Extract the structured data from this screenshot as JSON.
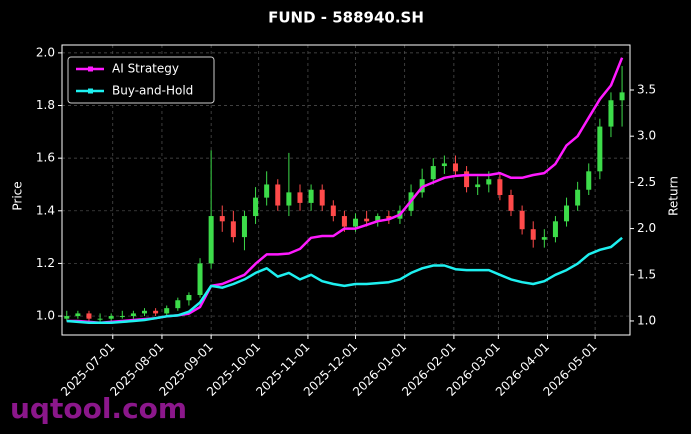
{
  "chart_data": {
    "type": "candlestick",
    "title": "FUND - 588940.SH",
    "y_label": "Price",
    "y2_label": "Return",
    "watermark": "uqtool.com",
    "grid": true,
    "legend_position": "upper-left",
    "up_color": "#3ddc4a",
    "down_color": "#ff4a4a",
    "xlim": [
      "2025-05-30",
      "2026-05-23"
    ],
    "xticks": [
      "2025-07-01",
      "2025-08-01",
      "2025-09-01",
      "2025-10-01",
      "2025-11-01",
      "2025-12-01",
      "2026-01-01",
      "2026-02-01",
      "2026-03-01",
      "2026-04-01",
      "2026-05-01"
    ],
    "ylim": [
      0.928,
      2.03
    ],
    "yticks": [
      {
        "value": 1,
        "label": "1.0"
      },
      1.2,
      1.4,
      1.6,
      1.8,
      {
        "value": 2,
        "label": "2.0"
      }
    ],
    "y2lim": [
      0.848,
      3.987
    ],
    "y2ticks": [
      {
        "value": 1,
        "label": "1.0"
      },
      1.5,
      {
        "value": 2,
        "label": "2.0"
      },
      2.5,
      {
        "value": 3,
        "label": "3.0"
      },
      3.5
    ],
    "x": [
      "2025-06-02",
      "2025-06-09",
      "2025-06-16",
      "2025-06-23",
      "2025-06-30",
      "2025-07-07",
      "2025-07-14",
      "2025-07-21",
      "2025-07-28",
      "2025-08-04",
      "2025-08-11",
      "2025-08-18",
      "2025-08-25",
      "2025-09-01",
      "2025-09-08",
      "2025-09-15",
      "2025-09-22",
      "2025-09-29",
      "2025-10-06",
      "2025-10-13",
      "2025-10-20",
      "2025-10-27",
      "2025-11-03",
      "2025-11-10",
      "2025-11-17",
      "2025-11-24",
      "2025-12-01",
      "2025-12-08",
      "2025-12-15",
      "2025-12-22",
      "2025-12-29",
      "2026-01-05",
      "2026-01-12",
      "2026-01-19",
      "2026-01-26",
      "2026-02-02",
      "2026-02-09",
      "2026-02-16",
      "2026-02-23",
      "2026-03-02",
      "2026-03-09",
      "2026-03-16",
      "2026-03-23",
      "2026-03-30",
      "2026-04-06",
      "2026-04-13",
      "2026-04-20",
      "2026-04-27",
      "2026-05-04",
      "2026-05-11",
      "2026-05-18"
    ],
    "open": [
      0.99,
      1.0,
      1.01,
      0.99,
      0.99,
      1.0,
      1.0,
      1.01,
      1.02,
      1.01,
      1.03,
      1.06,
      1.08,
      1.2,
      1.38,
      1.36,
      1.3,
      1.38,
      1.45,
      1.5,
      1.42,
      1.47,
      1.43,
      1.48,
      1.42,
      1.38,
      1.34,
      1.37,
      1.36,
      1.38,
      1.37,
      1.4,
      1.47,
      1.52,
      1.57,
      1.58,
      1.55,
      1.49,
      1.5,
      1.52,
      1.46,
      1.4,
      1.33,
      1.29,
      1.3,
      1.36,
      1.42,
      1.48,
      1.55,
      1.72,
      1.82
    ],
    "high": [
      1.02,
      1.02,
      1.02,
      1.01,
      1.01,
      1.02,
      1.02,
      1.03,
      1.03,
      1.04,
      1.07,
      1.09,
      1.22,
      1.63,
      1.42,
      1.4,
      1.4,
      1.49,
      1.55,
      1.52,
      1.62,
      1.5,
      1.5,
      1.5,
      1.44,
      1.4,
      1.39,
      1.4,
      1.39,
      1.4,
      1.42,
      1.5,
      1.56,
      1.6,
      1.61,
      1.61,
      1.57,
      1.53,
      1.55,
      1.54,
      1.48,
      1.42,
      1.36,
      1.33,
      1.38,
      1.45,
      1.51,
      1.58,
      1.75,
      1.85,
      1.95
    ],
    "low": [
      0.98,
      0.99,
      0.98,
      0.97,
      0.98,
      0.99,
      0.99,
      1.0,
      1.0,
      1.0,
      1.02,
      1.04,
      1.07,
      1.18,
      1.32,
      1.28,
      1.25,
      1.35,
      1.42,
      1.4,
      1.38,
      1.4,
      1.4,
      1.4,
      1.36,
      1.32,
      1.32,
      1.34,
      1.34,
      1.35,
      1.35,
      1.38,
      1.45,
      1.5,
      1.54,
      1.53,
      1.47,
      1.46,
      1.47,
      1.44,
      1.38,
      1.31,
      1.26,
      1.26,
      1.28,
      1.34,
      1.4,
      1.46,
      1.52,
      1.68,
      1.72
    ],
    "close": [
      1.0,
      1.01,
      0.99,
      0.99,
      1.0,
      1.0,
      1.01,
      1.02,
      1.01,
      1.03,
      1.06,
      1.08,
      1.2,
      1.38,
      1.36,
      1.3,
      1.38,
      1.45,
      1.5,
      1.42,
      1.47,
      1.43,
      1.48,
      1.42,
      1.38,
      1.34,
      1.37,
      1.36,
      1.38,
      1.37,
      1.4,
      1.47,
      1.52,
      1.57,
      1.58,
      1.55,
      1.49,
      1.5,
      1.52,
      1.46,
      1.4,
      1.33,
      1.29,
      1.3,
      1.36,
      1.42,
      1.48,
      1.55,
      1.72,
      1.82,
      1.85
    ],
    "series": [
      {
        "name": "AI Strategy",
        "color": "#ff1aff",
        "axis": "y2",
        "values": [
          1.0,
          1.0,
          0.99,
          0.98,
          0.99,
          1.0,
          1.01,
          1.02,
          1.03,
          1.05,
          1.06,
          1.08,
          1.15,
          1.38,
          1.4,
          1.45,
          1.5,
          1.62,
          1.72,
          1.72,
          1.73,
          1.78,
          1.9,
          1.92,
          1.92,
          2.0,
          2.0,
          2.04,
          2.08,
          2.1,
          2.15,
          2.3,
          2.45,
          2.5,
          2.55,
          2.57,
          2.58,
          2.58,
          2.58,
          2.6,
          2.55,
          2.55,
          2.58,
          2.6,
          2.7,
          2.9,
          3.0,
          3.2,
          3.4,
          3.55,
          3.85
        ]
      },
      {
        "name": "Buy-and-Hold",
        "color": "#1ef0f0",
        "axis": "y2",
        "values": [
          1.0,
          0.99,
          0.98,
          0.98,
          0.98,
          0.99,
          1.0,
          1.01,
          1.03,
          1.05,
          1.06,
          1.1,
          1.2,
          1.38,
          1.36,
          1.4,
          1.45,
          1.52,
          1.57,
          1.48,
          1.52,
          1.45,
          1.5,
          1.43,
          1.4,
          1.38,
          1.4,
          1.4,
          1.41,
          1.42,
          1.45,
          1.52,
          1.57,
          1.6,
          1.6,
          1.56,
          1.55,
          1.55,
          1.55,
          1.5,
          1.45,
          1.42,
          1.4,
          1.43,
          1.5,
          1.55,
          1.62,
          1.72,
          1.77,
          1.8,
          1.9
        ]
      }
    ]
  }
}
